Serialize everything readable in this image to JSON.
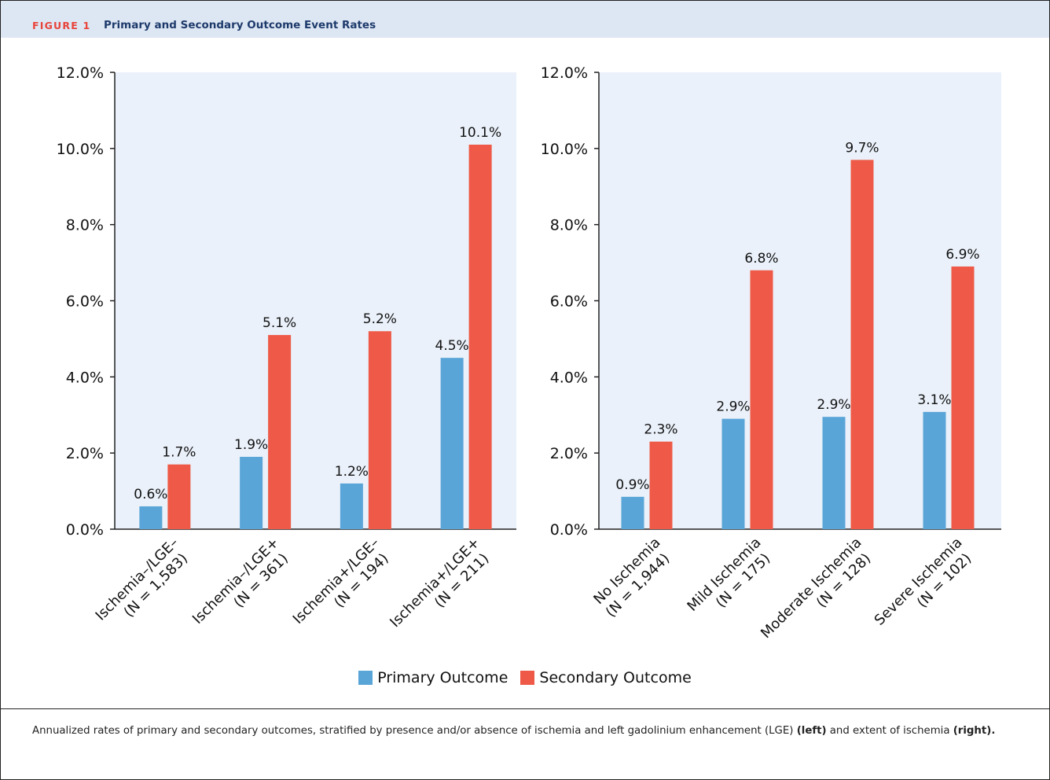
{
  "figure": {
    "label": "FIGURE 1",
    "title": "Primary and Secondary Outcome Event Rates"
  },
  "colors": {
    "primary": "#5aa5d8",
    "secondary": "#ee5a47",
    "plot_bg": "#eaf1fa",
    "header_bg": "#dde6f3"
  },
  "legend": {
    "primary_label": "Primary Outcome",
    "secondary_label": "Secondary Outcome"
  },
  "chart_data": [
    {
      "type": "bar",
      "title": "",
      "xlabel": "",
      "ylabel": "",
      "ylim": [
        0,
        12
      ],
      "yticks": [
        "0.0%",
        "2.0%",
        "4.0%",
        "6.0%",
        "8.0%",
        "10.0%",
        "12.0%"
      ],
      "categories": [
        [
          "Ischemia–/LGE–",
          "(N = 1,583)"
        ],
        [
          "Ischemia–/LGE+",
          "(N = 361)"
        ],
        [
          "Ischemia+/LGE–",
          "(N = 194)"
        ],
        [
          "Ischemia+/LGE+",
          "(N = 211)"
        ]
      ],
      "series": [
        {
          "name": "Primary Outcome",
          "values": [
            0.6,
            1.9,
            1.2,
            4.5
          ],
          "labels": [
            "0.6%",
            "1.9%",
            "1.2%",
            "4.5%"
          ]
        },
        {
          "name": "Secondary Outcome",
          "values": [
            1.7,
            5.1,
            5.2,
            10.1
          ],
          "labels": [
            "1.7%",
            "5.1%",
            "5.2%",
            "10.1%"
          ]
        }
      ]
    },
    {
      "type": "bar",
      "title": "",
      "xlabel": "",
      "ylabel": "",
      "ylim": [
        0,
        12
      ],
      "yticks": [
        "0.0%",
        "2.0%",
        "4.0%",
        "6.0%",
        "8.0%",
        "10.0%",
        "12.0%"
      ],
      "categories": [
        [
          "No Ischemia",
          "(N = 1,944)"
        ],
        [
          "Mild Ischemia",
          "(N = 175)"
        ],
        [
          "Moderate Ischemia",
          "(N = 128)"
        ],
        [
          "Severe Ischemia",
          "(N = 102)"
        ]
      ],
      "series": [
        {
          "name": "Primary Outcome",
          "values": [
            0.85,
            2.9,
            2.95,
            3.08
          ],
          "labels": [
            "0.9%",
            "2.9%",
            "2.9%",
            "3.1%"
          ]
        },
        {
          "name": "Secondary Outcome",
          "values": [
            2.3,
            6.8,
            9.7,
            6.9
          ],
          "labels": [
            "2.3%",
            "6.8%",
            "9.7%",
            "6.9%"
          ]
        }
      ]
    }
  ],
  "caption": {
    "text1": "Annualized rates of primary and secondary outcomes, stratified by presence and/or absence of ischemia and left gadolinium enhancement (LGE) ",
    "bold1": "(left)",
    "text2": " and extent of ischemia ",
    "bold2": "(right)."
  }
}
